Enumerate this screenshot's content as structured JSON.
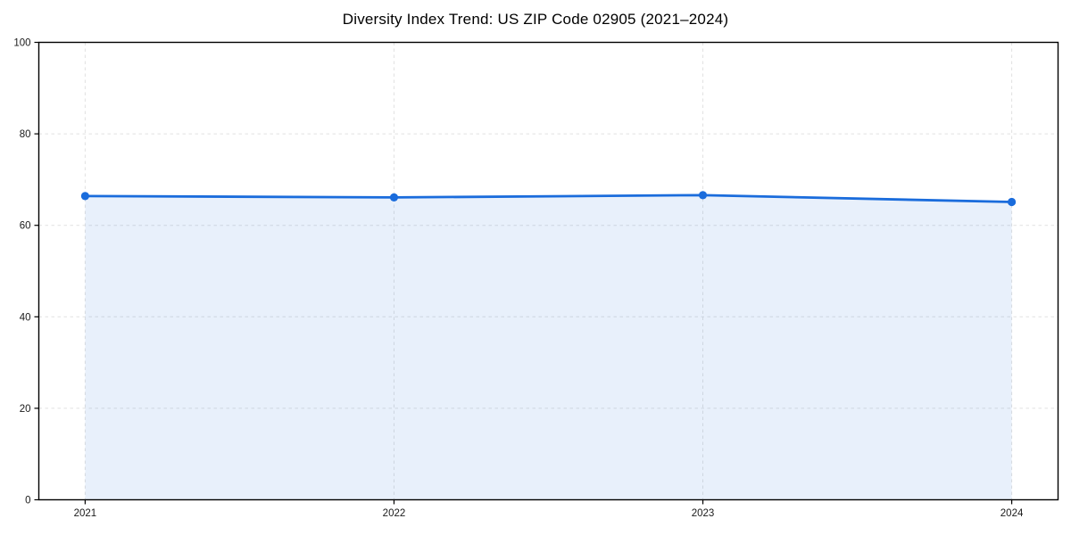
{
  "chart_data": {
    "type": "area",
    "title": "Diversity Index Trend: US ZIP Code 02905 (2021–2024)",
    "categories": [
      "2021",
      "2022",
      "2023",
      "2024"
    ],
    "x": [
      2021,
      2022,
      2023,
      2024
    ],
    "series": [
      {
        "name": "Diversity Index",
        "values": [
          66.4,
          66.1,
          66.6,
          65.1
        ]
      }
    ],
    "xlabel": "",
    "ylabel": "",
    "ylim": [
      0,
      100
    ],
    "yticks": [
      0,
      20,
      40,
      60,
      80,
      100
    ],
    "grid": true,
    "grid_style": "dashed",
    "legend_position": "none",
    "colors": {
      "line": "#1a6cdc",
      "marker": "#1a6cdc",
      "fill": "rgba(26,108,220,0.10)",
      "grid": "#e1e1e1",
      "axis": "#000000",
      "tick_text": "#1a1a1a",
      "title_text": "#000000"
    }
  }
}
